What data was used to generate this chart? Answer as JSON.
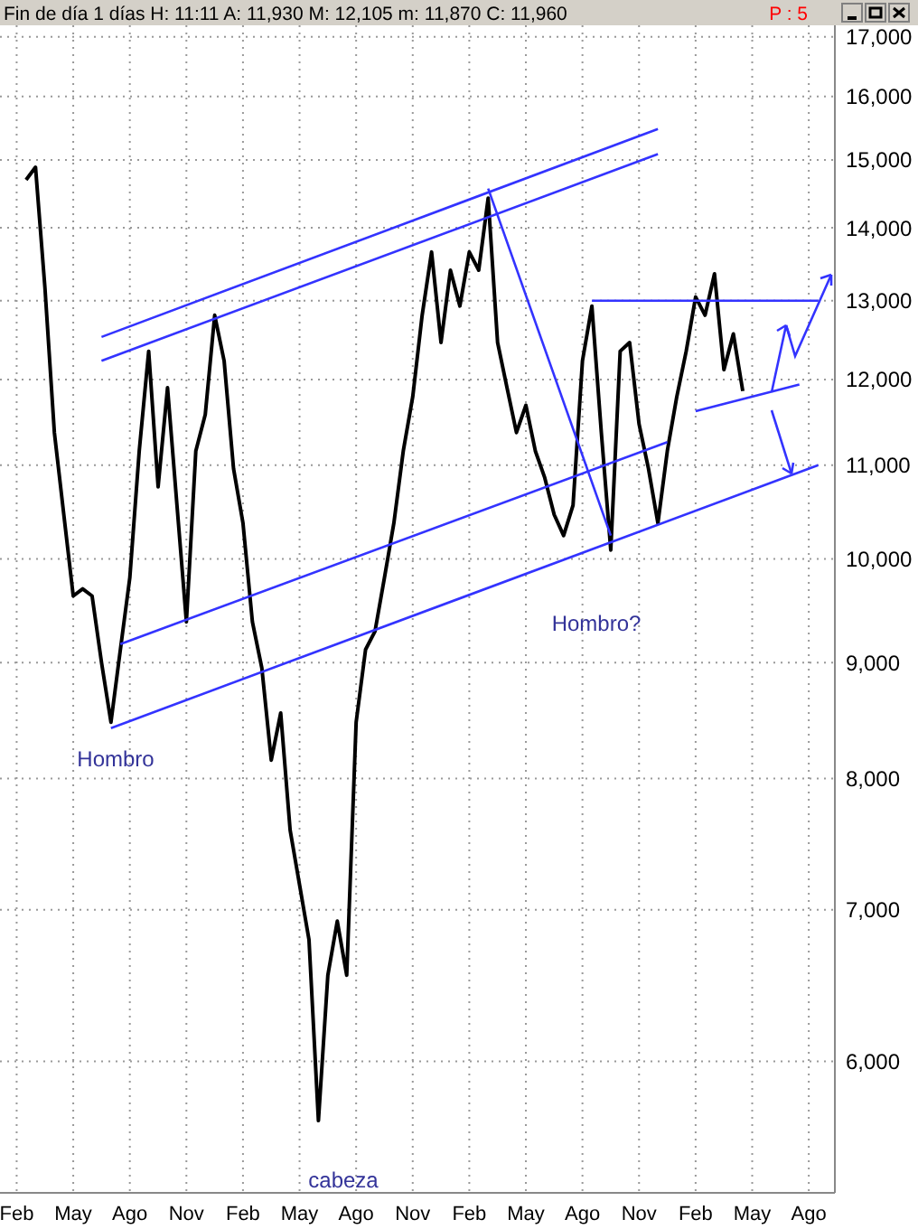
{
  "chart_data": {
    "type": "line",
    "title": "Fin de día 1 días  H: 11:11  A: 11,930  M: 12,105  m: 11,870  C: 11,960",
    "annotations": [
      "P : 5",
      "Hombro",
      "cabeza",
      "Hombro?"
    ],
    "log": "y",
    "grid": true,
    "categories": [
      null,
      "Feb",
      null,
      null,
      null,
      null,
      null,
      "May",
      null,
      null,
      null,
      null,
      null,
      "Ago",
      null,
      null,
      null,
      null,
      null,
      "Nov",
      null,
      null,
      null,
      null,
      null,
      "Feb",
      null,
      null,
      null,
      null,
      null,
      "May",
      null,
      null,
      null,
      null,
      null,
      "Ago",
      null,
      null,
      null,
      null,
      null,
      "Nov",
      null,
      null,
      null,
      null,
      null,
      "Feb",
      null,
      null,
      null,
      null,
      null,
      "May",
      null,
      null,
      null,
      null,
      null,
      "Ago",
      null,
      null,
      null,
      null,
      null,
      "Nov",
      null,
      null,
      null,
      null,
      null,
      "Feb",
      null,
      null,
      null,
      null,
      null,
      "May",
      null,
      null,
      null,
      null,
      null,
      "Ago",
      null,
      null
    ],
    "ylim": [
      5250,
      17200
    ],
    "yticks": [
      {
        "value": 6000,
        "label": "6,000"
      },
      {
        "value": 7000,
        "label": "7,000"
      },
      {
        "value": 8000,
        "label": "8,000"
      },
      {
        "value": 9000,
        "label": "9,000"
      },
      {
        "value": 10000,
        "label": "10,000"
      },
      {
        "value": 11000,
        "label": "11,000"
      },
      {
        "value": 12000,
        "label": "12,000"
      },
      {
        "value": 13000,
        "label": "13,000"
      },
      {
        "value": 14000,
        "label": "14,000"
      },
      {
        "value": 15000,
        "label": "15,000"
      },
      {
        "value": 16000,
        "label": "16,000"
      },
      {
        "value": 17000,
        "label": "17,000"
      }
    ],
    "series": [
      {
        "color": "#000000",
        "values": [
          null,
          null,
          14700,
          14890,
          13170,
          11370,
          10460,
          9630,
          9700,
          9630,
          9000,
          8470,
          9120,
          9810,
          11160,
          12350,
          10760,
          11900,
          10560,
          9380,
          11160,
          11580,
          12810,
          12230,
          10960,
          10370,
          9380,
          8950,
          8150,
          8550,
          7590,
          7180,
          6790,
          5650,
          6550,
          6920,
          6550,
          8470,
          9120,
          9290,
          9810,
          10370,
          11160,
          11790,
          12810,
          13660,
          12460,
          13410,
          12930,
          13660,
          13410,
          14430,
          12460,
          11900,
          11370,
          11690,
          11160,
          10860,
          10460,
          10240,
          10560,
          12230,
          12930,
          11370,
          10090,
          12350,
          12460,
          11470,
          10960,
          10370,
          11160,
          11790,
          12350,
          13050,
          12810,
          13360,
          12120,
          12570,
          11860,
          null,
          null,
          null,
          null,
          null,
          null,
          null,
          null,
          null
        ]
      },
      {
        "color": "#3333ff",
        "values": [
          null,
          null,
          null,
          null,
          null,
          null,
          null,
          null,
          null,
          null,
          12530,
          null,
          null,
          null,
          null,
          null,
          null,
          null,
          null,
          null,
          null,
          null,
          null,
          null,
          null,
          null,
          null,
          null,
          null,
          null,
          null,
          null,
          null,
          null,
          null,
          null,
          null,
          null,
          null,
          null,
          null,
          null,
          null,
          null,
          null,
          null,
          null,
          null,
          null,
          null,
          null,
          null,
          null,
          null,
          null,
          null,
          null,
          null,
          null,
          null,
          null,
          null,
          null,
          null,
          null,
          null,
          null,
          null,
          null,
          15480,
          null,
          null,
          null,
          null,
          null,
          null,
          null,
          null,
          null,
          null,
          null,
          null,
          null,
          null,
          null,
          null,
          null,
          null
        ]
      },
      {
        "color": "#3333ff",
        "values": [
          null,
          null,
          null,
          null,
          null,
          null,
          null,
          null,
          null,
          null,
          12230,
          null,
          null,
          null,
          null,
          null,
          null,
          null,
          null,
          null,
          null,
          null,
          null,
          null,
          null,
          null,
          null,
          null,
          null,
          null,
          null,
          null,
          null,
          null,
          null,
          null,
          null,
          null,
          null,
          null,
          null,
          null,
          null,
          null,
          null,
          null,
          null,
          null,
          null,
          null,
          null,
          null,
          null,
          null,
          null,
          null,
          null,
          null,
          null,
          null,
          null,
          null,
          null,
          null,
          null,
          null,
          null,
          null,
          null,
          15090,
          null,
          null,
          null,
          null,
          null,
          null,
          null,
          null,
          null,
          null,
          null,
          null,
          null,
          null,
          null,
          null,
          null,
          null
        ]
      },
      {
        "color": "#3333ff",
        "values": [
          null,
          null,
          null,
          null,
          null,
          null,
          null,
          null,
          null,
          null,
          null,
          null,
          9170,
          null,
          null,
          null,
          null,
          null,
          null,
          null,
          null,
          null,
          null,
          null,
          null,
          null,
          null,
          null,
          null,
          null,
          null,
          null,
          null,
          null,
          null,
          null,
          null,
          null,
          null,
          null,
          null,
          null,
          null,
          null,
          null,
          null,
          null,
          null,
          null,
          null,
          null,
          null,
          null,
          null,
          null,
          null,
          null,
          null,
          null,
          null,
          null,
          null,
          null,
          null,
          null,
          null,
          null,
          null,
          null,
          null,
          11260,
          null,
          null,
          null,
          null,
          null,
          null,
          null,
          null,
          null,
          null,
          null,
          null,
          null,
          null,
          null,
          null,
          null
        ]
      },
      {
        "color": "#3333ff",
        "values": [
          null,
          null,
          null,
          null,
          null,
          null,
          null,
          null,
          null,
          null,
          null,
          null,
          null,
          null,
          null,
          null,
          null,
          null,
          null,
          null,
          null,
          null,
          null,
          null,
          null,
          null,
          null,
          null,
          null,
          null,
          null,
          null,
          null,
          null,
          null,
          null,
          null,
          null,
          null,
          null,
          null,
          null,
          null,
          null,
          null,
          null,
          null,
          null,
          null,
          null,
          null,
          null,
          null,
          null,
          null,
          null,
          null,
          null,
          null,
          null,
          null,
          null,
          null,
          null,
          null,
          null,
          null,
          null,
          null,
          null,
          null,
          null,
          null,
          11620,
          null,
          null,
          null,
          null,
          null,
          null,
          null,
          null,
          null,
          null,
          11940,
          null,
          null,
          null
        ]
      },
      {
        "color": "#3333ff",
        "values": [
          null,
          null,
          null,
          null,
          null,
          null,
          null,
          null,
          null,
          null,
          null,
          8420,
          null,
          null,
          null,
          null,
          null,
          null,
          null,
          null,
          null,
          null,
          null,
          null,
          null,
          null,
          null,
          null,
          null,
          null,
          null,
          null,
          null,
          null,
          null,
          null,
          null,
          null,
          null,
          null,
          null,
          null,
          null,
          null,
          null,
          null,
          null,
          null,
          null,
          null,
          null,
          null,
          null,
          null,
          null,
          null,
          null,
          null,
          null,
          null,
          null,
          null,
          null,
          null,
          null,
          null,
          null,
          null,
          null,
          null,
          null,
          null,
          null,
          null,
          null,
          null,
          null,
          null,
          null,
          null,
          null,
          null,
          null,
          null,
          null,
          null,
          11000,
          null
        ]
      },
      {
        "color": "#3333ff",
        "values": [
          null,
          null,
          null,
          null,
          null,
          null,
          null,
          null,
          null,
          null,
          null,
          null,
          null,
          null,
          null,
          null,
          null,
          null,
          null,
          null,
          null,
          null,
          null,
          null,
          null,
          null,
          null,
          null,
          null,
          null,
          null,
          null,
          null,
          null,
          null,
          null,
          null,
          null,
          null,
          null,
          null,
          null,
          null,
          null,
          null,
          null,
          null,
          null,
          null,
          null,
          null,
          14570,
          null,
          null,
          null,
          null,
          null,
          null,
          null,
          null,
          null,
          null,
          null,
          null,
          10240,
          null,
          null,
          null,
          null,
          null,
          null,
          null,
          null,
          null,
          null,
          null,
          null,
          null,
          null,
          null,
          null,
          null,
          null,
          null,
          null,
          null,
          null,
          null
        ]
      },
      {
        "color": "#3333ff",
        "values": [
          null,
          null,
          null,
          null,
          null,
          null,
          null,
          null,
          null,
          null,
          null,
          null,
          null,
          null,
          null,
          null,
          null,
          null,
          null,
          null,
          null,
          null,
          null,
          null,
          null,
          null,
          null,
          null,
          null,
          null,
          null,
          null,
          null,
          null,
          null,
          null,
          null,
          null,
          null,
          null,
          null,
          null,
          null,
          null,
          null,
          null,
          null,
          null,
          null,
          null,
          null,
          null,
          null,
          null,
          null,
          null,
          null,
          null,
          null,
          null,
          null,
          null,
          13000,
          null,
          null,
          null,
          null,
          null,
          null,
          null,
          null,
          null,
          null,
          null,
          null,
          null,
          null,
          null,
          null,
          null,
          null,
          null,
          null,
          null,
          null,
          null,
          13000,
          null
        ]
      }
    ]
  }
}
